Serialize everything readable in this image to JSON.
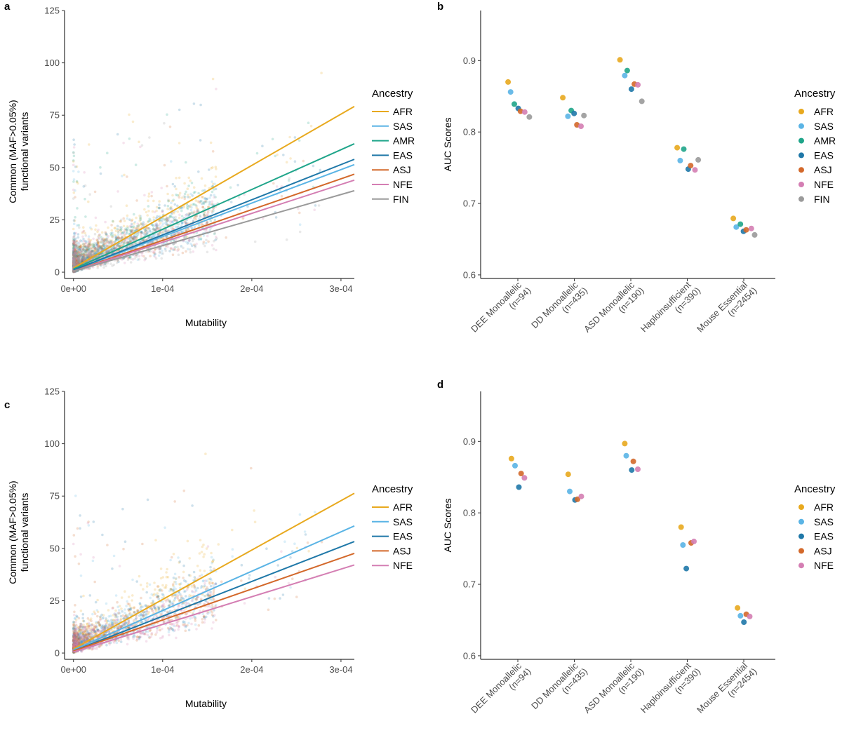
{
  "colors": {
    "AFR": "#E8A91E",
    "SAS": "#5AB4E5",
    "AMR": "#1FA58A",
    "EAS": "#1F78A8",
    "ASJ": "#D3682A",
    "NFE": "#D47EB3",
    "FIN": "#9A9A9A"
  },
  "chart_data": [
    {
      "panel": "a",
      "type": "scatter",
      "xlabel": "Mutability",
      "ylabel": [
        "Common (MAF>0.05%)",
        "functional variants"
      ],
      "xlim": [
        -1e-05,
        0.000315
      ],
      "ylim": [
        -3,
        125
      ],
      "x_ticks": [
        0,
        0.0001,
        0.0002,
        0.0003
      ],
      "x_tick_labels": [
        "0e+00",
        "1e-04",
        "2e-04",
        "3e-04"
      ],
      "y_ticks": [
        0,
        25,
        50,
        75,
        100,
        125
      ],
      "y_tick_labels": [
        "0",
        "25",
        "50",
        "75",
        "100",
        "125"
      ],
      "legend_title": "Ancestry",
      "legend_position": "right",
      "grid": false,
      "series": [
        {
          "name": "AFR",
          "fit_intercept": 2,
          "fit_slope": 245000
        },
        {
          "name": "SAS",
          "fit_intercept": 1,
          "fit_slope": 160000
        },
        {
          "name": "AMR",
          "fit_intercept": 1.5,
          "fit_slope": 190000
        },
        {
          "name": "EAS",
          "fit_intercept": 1,
          "fit_slope": 168000
        },
        {
          "name": "ASJ",
          "fit_intercept": 0.5,
          "fit_slope": 147000
        },
        {
          "name": "NFE",
          "fit_intercept": 0.5,
          "fit_slope": 138000
        },
        {
          "name": "FIN",
          "fit_intercept": 0.5,
          "fit_slope": 122000
        }
      ]
    },
    {
      "panel": "b",
      "type": "scatter",
      "xlabel": "",
      "ylabel": "AUC Scores",
      "ylim": [
        0.595,
        0.97
      ],
      "y_ticks": [
        0.6,
        0.7,
        0.8,
        0.9
      ],
      "y_tick_labels": [
        "0.6",
        "0.7",
        "0.8",
        "0.9"
      ],
      "categories": [
        [
          "DEE Monoallelic",
          "(n=94)"
        ],
        [
          "DD Monoallelic",
          "(n=435)"
        ],
        [
          "ASD Monoallelic",
          "(n=190)"
        ],
        [
          "Haploinsufficient",
          "(n=390)"
        ],
        [
          "Mouse Essential",
          "(n=2454)"
        ]
      ],
      "legend_title": "Ancestry",
      "legend_position": "right",
      "grid": false,
      "series": [
        {
          "name": "AFR",
          "values": [
            0.87,
            0.848,
            0.901,
            0.778,
            0.679
          ]
        },
        {
          "name": "SAS",
          "values": [
            0.856,
            0.822,
            0.879,
            0.76,
            0.667
          ]
        },
        {
          "name": "AMR",
          "values": [
            0.839,
            0.83,
            0.886,
            0.776,
            0.671
          ]
        },
        {
          "name": "EAS",
          "values": [
            0.833,
            0.826,
            0.86,
            0.748,
            0.661
          ]
        },
        {
          "name": "ASJ",
          "values": [
            0.829,
            0.81,
            0.867,
            0.753,
            0.663
          ]
        },
        {
          "name": "NFE",
          "values": [
            0.828,
            0.808,
            0.866,
            0.747,
            0.665
          ]
        },
        {
          "name": "FIN",
          "values": [
            0.821,
            0.823,
            0.843,
            0.761,
            0.656
          ]
        }
      ]
    },
    {
      "panel": "c",
      "type": "scatter",
      "xlabel": "Mutability",
      "ylabel": [
        "Common (MAF>0.05%)",
        "functional variants"
      ],
      "xlim": [
        -1e-05,
        0.000315
      ],
      "ylim": [
        -3,
        125
      ],
      "x_ticks": [
        0,
        0.0001,
        0.0002,
        0.0003
      ],
      "x_tick_labels": [
        "0e+00",
        "1e-04",
        "2e-04",
        "3e-04"
      ],
      "y_ticks": [
        0,
        25,
        50,
        75,
        100,
        125
      ],
      "y_tick_labels": [
        "0",
        "25",
        "50",
        "75",
        "100",
        "125"
      ],
      "legend_title": "Ancestry",
      "legend_position": "right",
      "grid": false,
      "series": [
        {
          "name": "AFR",
          "fit_intercept": 2,
          "fit_slope": 236000
        },
        {
          "name": "SAS",
          "fit_intercept": 1.5,
          "fit_slope": 188000
        },
        {
          "name": "EAS",
          "fit_intercept": 1,
          "fit_slope": 166000
        },
        {
          "name": "ASJ",
          "fit_intercept": 1,
          "fit_slope": 148000
        },
        {
          "name": "NFE",
          "fit_intercept": 0.5,
          "fit_slope": 132000
        }
      ]
    },
    {
      "panel": "d",
      "type": "scatter",
      "xlabel": "",
      "ylabel": "AUC Scores",
      "ylim": [
        0.595,
        0.97
      ],
      "y_ticks": [
        0.6,
        0.7,
        0.8,
        0.9
      ],
      "y_tick_labels": [
        "0.6",
        "0.7",
        "0.8",
        "0.9"
      ],
      "categories": [
        [
          "DEE Monoallelic",
          "(n=94)"
        ],
        [
          "DD Monoallelic",
          "(n=435)"
        ],
        [
          "ASD Monoallelic",
          "(n=190)"
        ],
        [
          "Haploinsufficient",
          "(n=390)"
        ],
        [
          "Mouse Essential",
          "(n=2454)"
        ]
      ],
      "legend_title": "Ancestry",
      "legend_position": "right",
      "grid": false,
      "series": [
        {
          "name": "AFR",
          "values": [
            0.876,
            0.854,
            0.897,
            0.78,
            0.667
          ]
        },
        {
          "name": "SAS",
          "values": [
            0.866,
            0.83,
            0.88,
            0.755,
            0.656
          ]
        },
        {
          "name": "EAS",
          "values": [
            0.836,
            0.818,
            0.86,
            0.722,
            0.647
          ]
        },
        {
          "name": "ASJ",
          "values": [
            0.855,
            0.819,
            0.872,
            0.758,
            0.658
          ]
        },
        {
          "name": "NFE",
          "values": [
            0.849,
            0.823,
            0.861,
            0.76,
            0.655
          ]
        }
      ]
    }
  ]
}
